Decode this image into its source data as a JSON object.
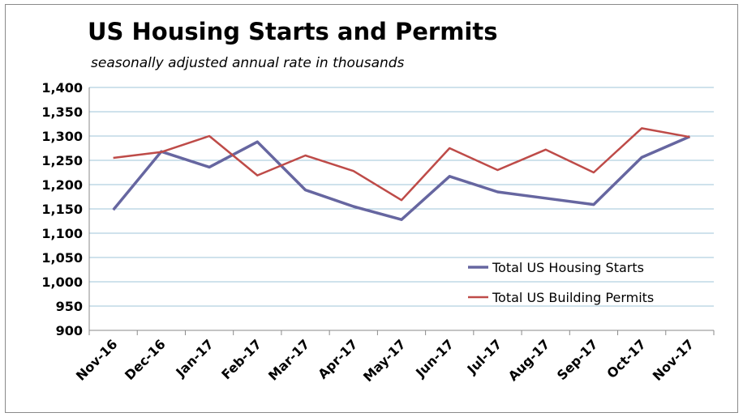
{
  "chart_data": {
    "type": "line",
    "title": "US Housing Starts and Permits",
    "subtitle": "seasonally adjusted annual rate in thousands",
    "xlabel": "",
    "ylabel": "",
    "categories": [
      "Nov-16",
      "Dec-16",
      "Jan-17",
      "Feb-17",
      "Mar-17",
      "Apr-17",
      "May-17",
      "Jun-17",
      "Jul-17",
      "Aug-17",
      "Sep-17",
      "Oct-17",
      "Nov-17"
    ],
    "ylim": [
      900,
      1400
    ],
    "yticks": [
      900,
      950,
      1000,
      1050,
      1100,
      1150,
      1200,
      1250,
      1300,
      1350,
      1400
    ],
    "ytick_labels": [
      "900",
      "950",
      "1,000",
      "1,050",
      "1,100",
      "1,150",
      "1,200",
      "1,250",
      "1,300",
      "1,350",
      "1,400"
    ],
    "grid": "horizontal",
    "legend_position": "bottom-right",
    "series": [
      {
        "name": "Total US Housing Starts",
        "color": "#6666a0",
        "values": [
          1148,
          1268,
          1236,
          1288,
          1189,
          1155,
          1128,
          1217,
          1185,
          1172,
          1159,
          1256,
          1299
        ]
      },
      {
        "name": "Total US Building Permits",
        "color": "#be4b48",
        "values": [
          1255,
          1267,
          1300,
          1219,
          1260,
          1228,
          1168,
          1275,
          1230,
          1272,
          1225,
          1316,
          1298
        ]
      }
    ]
  }
}
